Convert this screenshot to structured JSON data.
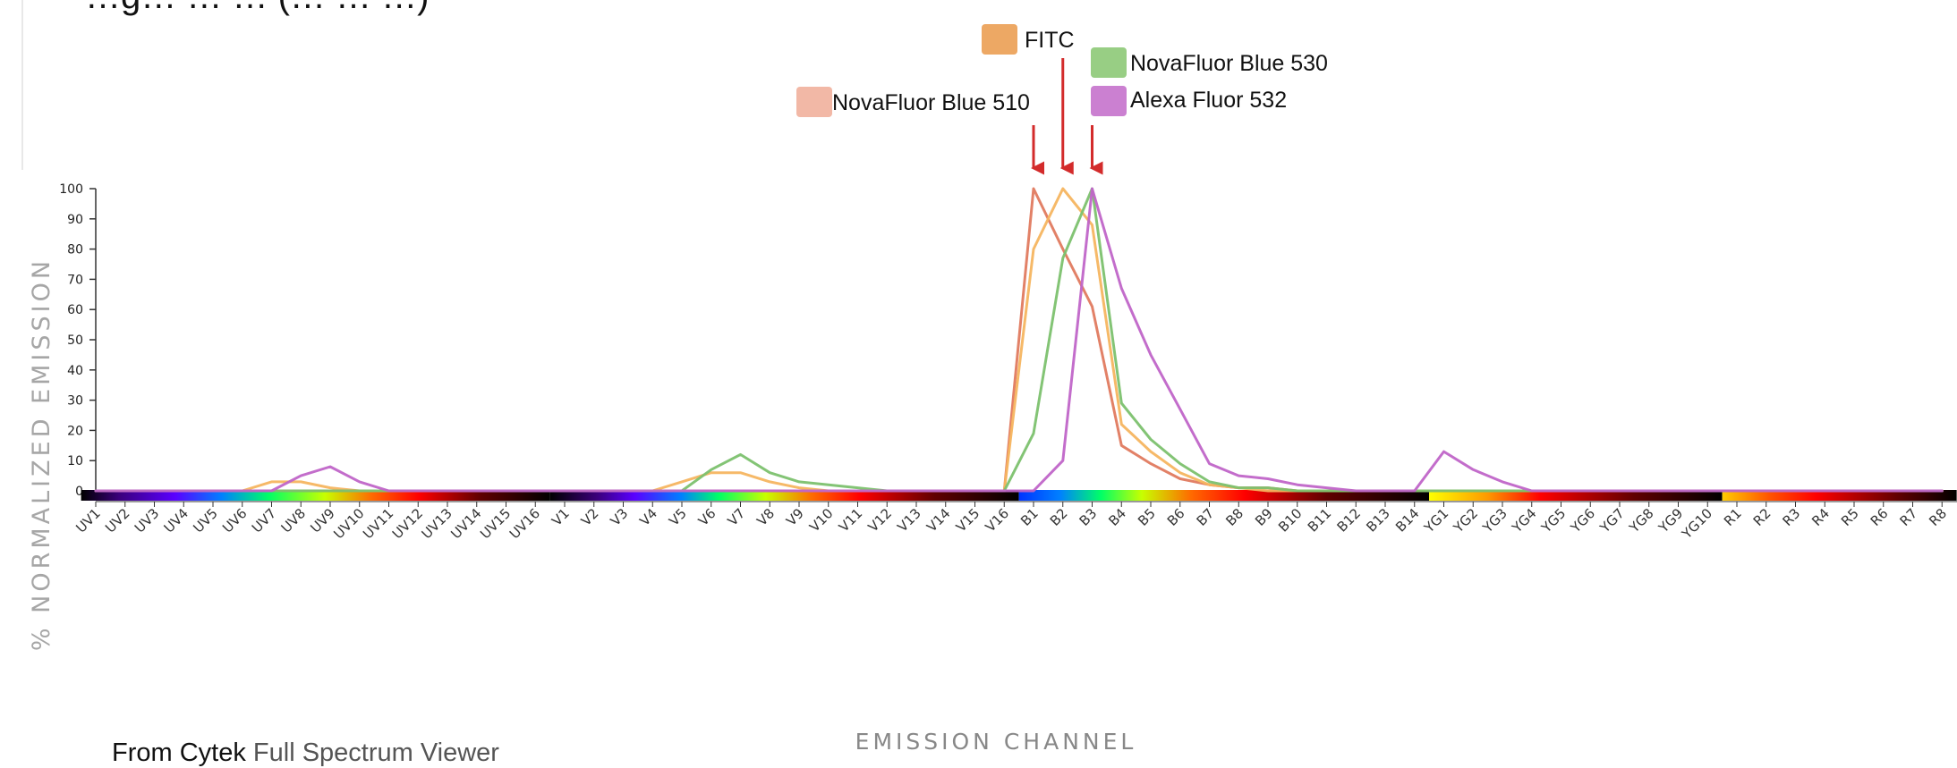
{
  "heading_fragment": "…g… … … (… … …)",
  "footer": {
    "prefix": "From Cytek",
    "link": "Full Spectrum Viewer"
  },
  "chart_data": {
    "type": "line",
    "title": "",
    "xlabel": "EMISSION CHANNEL",
    "ylabel": "% NORMALIZED EMISSION",
    "ylim": [
      0,
      100
    ],
    "yticks": [
      0,
      10,
      20,
      30,
      40,
      50,
      60,
      70,
      80,
      90,
      100
    ],
    "grid": false,
    "legend_placement": "top-center",
    "categories": [
      "UV1",
      "UV2",
      "UV3",
      "UV4",
      "UV5",
      "UV6",
      "UV7",
      "UV8",
      "UV9",
      "UV10",
      "UV11",
      "UV12",
      "UV13",
      "UV14",
      "UV15",
      "UV16",
      "V1",
      "V2",
      "V3",
      "V4",
      "V5",
      "V6",
      "V7",
      "V8",
      "V9",
      "V10",
      "V11",
      "V12",
      "V13",
      "V14",
      "V15",
      "V16",
      "B1",
      "B2",
      "B3",
      "B4",
      "B5",
      "B6",
      "B7",
      "B8",
      "B9",
      "B10",
      "B11",
      "B12",
      "B13",
      "B14",
      "YG1",
      "YG2",
      "YG3",
      "YG4",
      "YG5",
      "YG6",
      "YG7",
      "YG8",
      "YG9",
      "YG10",
      "R1",
      "R2",
      "R3",
      "R4",
      "R5",
      "R6",
      "R7",
      "R8"
    ],
    "detector_groups": [
      {
        "name": "UV",
        "start": "UV1",
        "end": "UV16"
      },
      {
        "name": "V",
        "start": "V1",
        "end": "V16"
      },
      {
        "name": "B",
        "start": "B1",
        "end": "B14"
      },
      {
        "name": "YG",
        "start": "YG1",
        "end": "YG10"
      },
      {
        "name": "R",
        "start": "R1",
        "end": "R8"
      }
    ],
    "series": [
      {
        "name": "NovaFluor Blue 510",
        "color": "#E07A5F",
        "values": [
          0,
          0,
          0,
          0,
          0,
          0,
          0,
          0,
          0,
          0,
          0,
          0,
          0,
          0,
          0,
          0,
          0,
          0,
          0,
          0,
          0,
          0,
          0,
          0,
          0,
          0,
          0,
          0,
          0,
          0,
          0,
          0,
          100,
          80,
          61,
          15,
          9,
          4,
          2,
          1,
          1,
          0,
          0,
          0,
          0,
          0,
          0,
          0,
          0,
          0,
          0,
          0,
          0,
          0,
          0,
          0,
          0,
          0,
          0,
          0,
          0,
          0,
          0,
          0
        ]
      },
      {
        "name": "FITC",
        "color": "#F5B560",
        "values": [
          0,
          0,
          0,
          0,
          0,
          0,
          3,
          3,
          1,
          0,
          0,
          0,
          0,
          0,
          0,
          0,
          0,
          0,
          0,
          0,
          3,
          6,
          6,
          3,
          1,
          0,
          0,
          0,
          0,
          0,
          0,
          0,
          80,
          100,
          88,
          22,
          13,
          6,
          2,
          1,
          0,
          0,
          0,
          0,
          0,
          0,
          0,
          0,
          0,
          0,
          0,
          0,
          0,
          0,
          0,
          0,
          0,
          0,
          0,
          0,
          0,
          0,
          0,
          0
        ]
      },
      {
        "name": "NovaFluor Blue 530",
        "color": "#7CC16E",
        "values": [
          0,
          0,
          0,
          0,
          0,
          0,
          0,
          0,
          0,
          0,
          0,
          0,
          0,
          0,
          0,
          0,
          0,
          0,
          0,
          0,
          0,
          7,
          12,
          6,
          3,
          2,
          1,
          0,
          0,
          0,
          0,
          0,
          19,
          77,
          100,
          29,
          17,
          9,
          3,
          1,
          1,
          0,
          0,
          0,
          0,
          0,
          0,
          0,
          0,
          0,
          0,
          0,
          0,
          0,
          0,
          0,
          0,
          0,
          0,
          0,
          0,
          0,
          0,
          0
        ]
      },
      {
        "name": "Alexa Fluor 532",
        "color": "#C065C8",
        "values": [
          0,
          0,
          0,
          0,
          0,
          0,
          0,
          5,
          8,
          3,
          0,
          0,
          0,
          0,
          0,
          0,
          0,
          0,
          0,
          0,
          0,
          0,
          0,
          0,
          0,
          0,
          0,
          0,
          0,
          0,
          0,
          0,
          0,
          10,
          100,
          67,
          45,
          27,
          9,
          5,
          4,
          2,
          1,
          0,
          0,
          0,
          13,
          7,
          3,
          0,
          0,
          0,
          0,
          0,
          0,
          0,
          0,
          0,
          0,
          0,
          0,
          0,
          0,
          0
        ]
      }
    ],
    "legend": [
      {
        "label": "FITC",
        "color": "#EDA864"
      },
      {
        "label": "NovaFluor Blue 530",
        "color": "#98CE84"
      },
      {
        "label": "NovaFluor Blue 510",
        "color": "#F2B8A6"
      },
      {
        "label": "Alexa Fluor 532",
        "color": "#CB80D1"
      }
    ],
    "annotations": [
      {
        "type": "arrow",
        "color": "#D32B2B",
        "target": "B1"
      },
      {
        "type": "arrow",
        "color": "#D32B2B",
        "target": "B2"
      },
      {
        "type": "arrow",
        "color": "#D32B2B",
        "target": "B3"
      }
    ]
  }
}
